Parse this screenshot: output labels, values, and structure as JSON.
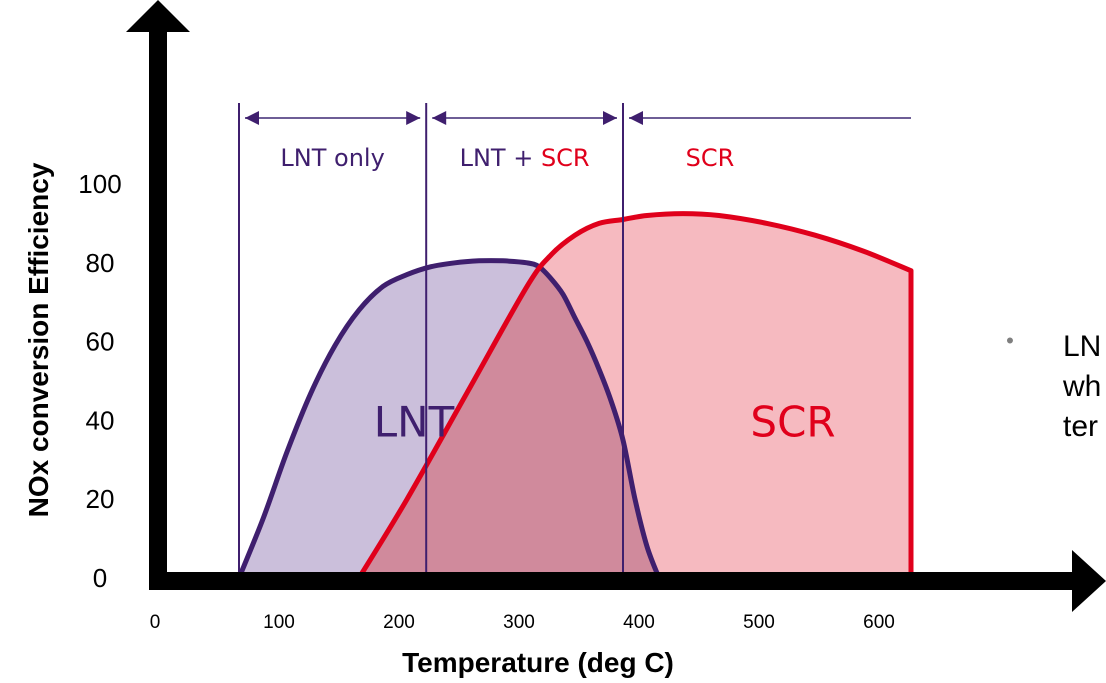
{
  "chart_data": {
    "type": "area",
    "title": "",
    "xlabel": "Temperature (deg C)",
    "ylabel": "NOx conversion Efficiency",
    "xlim": [
      0,
      700
    ],
    "ylim": [
      0,
      100
    ],
    "x_ticks": [
      "0",
      "100",
      "200",
      "300",
      "400",
      "500",
      "600"
    ],
    "y_ticks": [
      "0",
      "20",
      "40",
      "60",
      "80",
      "100"
    ],
    "grid": false,
    "series": [
      {
        "name": "LNT",
        "color": "#3f1f6e",
        "fill": "#c8bcd9",
        "x": [
          60,
          80,
          100,
          120,
          140,
          160,
          180,
          200,
          220,
          240,
          260,
          280,
          300,
          310,
          320,
          330,
          340,
          350,
          360,
          370,
          380,
          390,
          400,
          410
        ],
        "y": [
          0,
          15,
          32,
          47,
          59,
          68,
          74,
          77,
          79,
          80,
          80.5,
          80.5,
          80,
          79,
          76,
          72,
          66,
          60,
          53,
          45,
          35,
          20,
          8,
          0
        ]
      },
      {
        "name": "SCR",
        "color": "#e0001b",
        "fill": "#f5aeb5",
        "x": [
          160,
          200,
          250,
          300,
          320,
          340,
          360,
          380,
          400,
          430,
          460,
          500,
          540,
          580,
          620
        ],
        "y": [
          0,
          20,
          47,
          74,
          82,
          87,
          90,
          91,
          92,
          92.5,
          92,
          90,
          87,
          83,
          78
        ]
      }
    ],
    "regions": [
      {
        "label_parts": [
          {
            "text": "LNT only",
            "color": "#3f1f6e"
          }
        ],
        "x_start": 60,
        "x_end": 216
      },
      {
        "label_parts": [
          {
            "text": "LNT + ",
            "color": "#3f1f6e"
          },
          {
            "text": "SCR",
            "color": "#e0001b"
          }
        ],
        "x_start": 216,
        "x_end": 380
      },
      {
        "label_parts": [
          {
            "text": "SCR",
            "color": "#e0001b"
          }
        ],
        "x_start": 380,
        "x_end": 620
      }
    ],
    "area_labels": [
      {
        "text": "LNT",
        "x": 195,
        "y": 40
      },
      {
        "text": "SCR",
        "x": 520,
        "y": 40
      }
    ]
  },
  "side_note": {
    "bullet": "•",
    "lines": [
      "LN",
      "wh",
      "ter"
    ]
  }
}
